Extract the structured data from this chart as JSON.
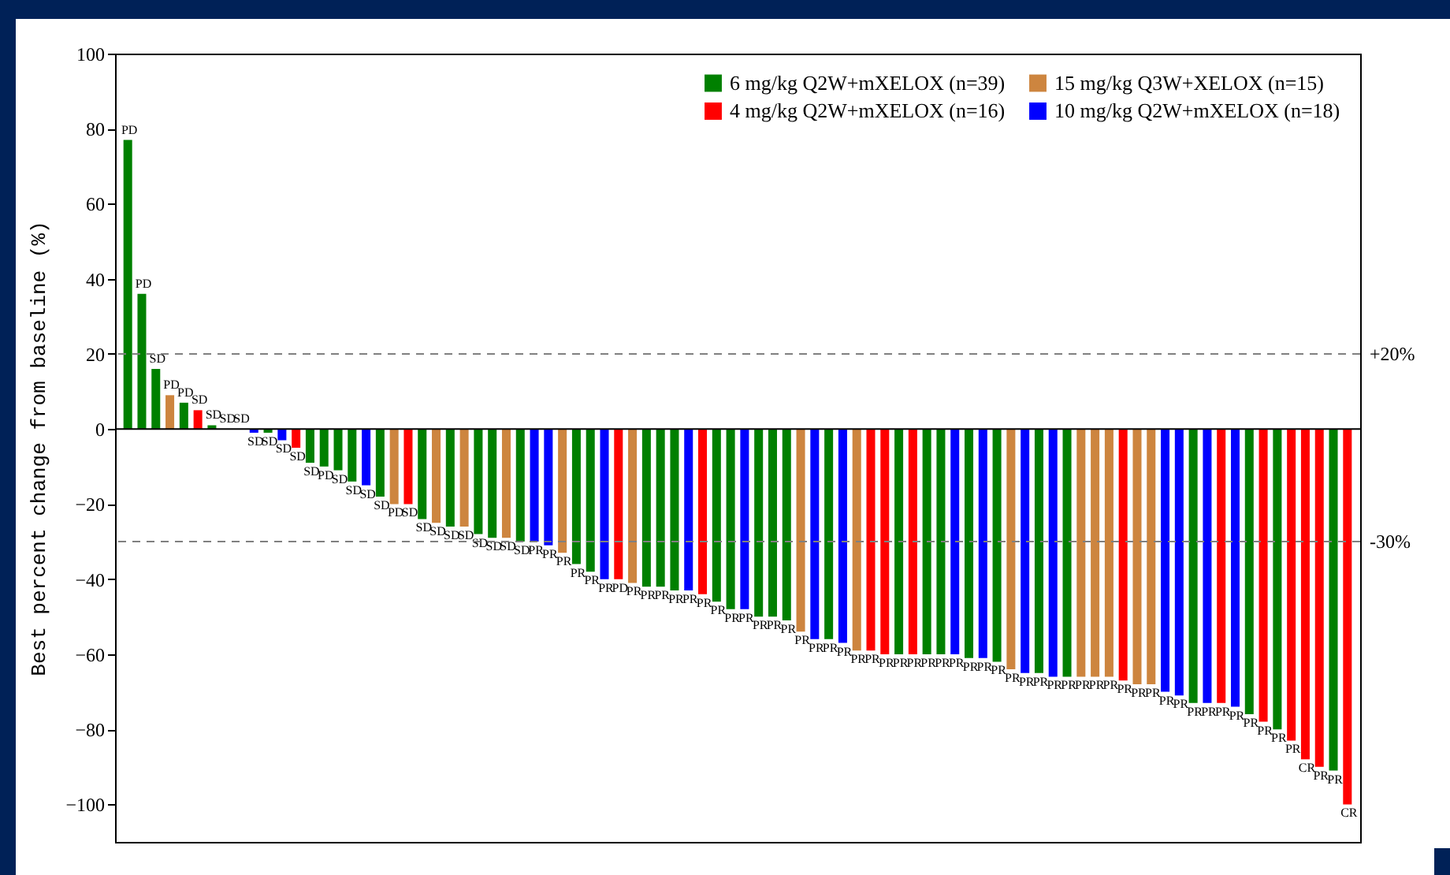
{
  "chart_data": {
    "type": "bar",
    "ylabel": "Best percent change from baseline (%)",
    "categories": [
      null,
      null,
      null,
      null,
      null,
      null,
      null,
      null,
      null,
      null,
      null,
      null,
      null,
      null,
      null,
      null,
      null,
      null,
      null,
      null,
      null,
      null,
      null,
      null,
      null,
      null,
      null,
      null,
      null,
      null,
      null,
      null,
      null,
      null,
      null,
      null,
      null,
      null,
      null,
      null,
      null,
      null,
      null,
      null,
      null,
      null,
      null,
      null,
      null,
      null,
      null,
      null,
      null,
      null,
      null,
      null,
      null,
      null,
      null,
      null,
      null,
      null,
      null,
      null,
      null,
      null,
      null,
      null,
      null,
      null,
      null,
      null,
      null,
      null,
      null,
      null,
      null,
      null,
      null,
      null,
      null,
      null,
      null,
      null,
      null,
      null,
      null,
      null
    ],
    "series": [
      {
        "name": "6 mg/kg Q2W+mXELOX (n=39)",
        "color": "#008000",
        "values": [
          77,
          36,
          16,
          null,
          7,
          null,
          1,
          0,
          null,
          null,
          -1,
          null,
          null,
          -9,
          -10,
          -11,
          -14,
          null,
          -18,
          null,
          null,
          -24,
          null,
          -26,
          null,
          -28,
          -29,
          null,
          -30,
          null,
          null,
          null,
          -36,
          -38,
          null,
          null,
          null,
          -42,
          -42,
          -43,
          null,
          null,
          -46,
          -48,
          null,
          -50,
          -50,
          -51,
          null,
          null,
          -56,
          null,
          null,
          null,
          null,
          -60,
          null,
          -60,
          -60,
          null,
          -61,
          null,
          -62,
          null,
          null,
          -65,
          null,
          -66,
          null,
          null,
          null,
          null,
          null,
          null,
          null,
          null,
          -73,
          null,
          null,
          null,
          -76,
          null,
          -80,
          null,
          null,
          null,
          -91,
          null
        ],
        "value_labels": [
          "PD",
          "PD",
          "SD",
          null,
          "PD",
          null,
          "SD",
          "SD",
          null,
          null,
          "SD",
          null,
          null,
          "SD",
          "PD",
          "SD",
          "SD",
          null,
          "SD",
          null,
          null,
          "SD",
          null,
          "SD",
          null,
          "SD",
          "SD",
          null,
          "SD",
          null,
          null,
          null,
          "PR",
          "PR",
          null,
          null,
          null,
          "PR",
          "PR",
          "PR",
          null,
          null,
          "PR",
          "PR",
          null,
          "PR",
          "PR",
          "PR",
          null,
          null,
          "PR",
          null,
          null,
          null,
          null,
          "PR",
          null,
          "PR",
          "PR",
          null,
          "PR",
          null,
          "PR",
          null,
          null,
          "PR",
          null,
          "PR",
          null,
          null,
          null,
          null,
          null,
          null,
          null,
          null,
          "PR",
          null,
          null,
          null,
          "PR",
          null,
          "PR",
          null,
          null,
          null,
          "PR",
          null
        ]
      },
      {
        "name": "15 mg/kg Q3W+XELOX (n=15)",
        "color": "#cd853f",
        "values": [
          null,
          null,
          null,
          9,
          null,
          null,
          null,
          null,
          null,
          null,
          null,
          null,
          null,
          null,
          null,
          null,
          null,
          null,
          null,
          -20,
          null,
          null,
          -25,
          null,
          -26,
          null,
          null,
          -29,
          null,
          null,
          null,
          -33,
          null,
          null,
          null,
          null,
          -41,
          null,
          null,
          null,
          null,
          null,
          null,
          null,
          null,
          null,
          null,
          null,
          -54,
          null,
          null,
          null,
          -59,
          null,
          null,
          null,
          null,
          null,
          null,
          null,
          null,
          null,
          null,
          -64,
          null,
          null,
          null,
          null,
          -66,
          -66,
          -66,
          null,
          -68,
          -68,
          null,
          null,
          null,
          null,
          null,
          null,
          null,
          null,
          null,
          null,
          null,
          null,
          null,
          null
        ],
        "value_labels": [
          null,
          null,
          null,
          "PD",
          null,
          null,
          null,
          null,
          null,
          null,
          null,
          null,
          null,
          null,
          null,
          null,
          null,
          null,
          null,
          "PD",
          null,
          null,
          "SD",
          null,
          "SD",
          null,
          null,
          "SD",
          null,
          null,
          null,
          "PR",
          null,
          null,
          null,
          null,
          "PR",
          null,
          null,
          null,
          null,
          null,
          null,
          null,
          null,
          null,
          null,
          null,
          "PR",
          null,
          null,
          null,
          "PR",
          null,
          null,
          null,
          null,
          null,
          null,
          null,
          null,
          null,
          null,
          "PR",
          null,
          null,
          null,
          null,
          "PR",
          "PR",
          "PR",
          null,
          "PR",
          "PR",
          null,
          null,
          null,
          null,
          null,
          null,
          null,
          null,
          null,
          null,
          null,
          null,
          null,
          null
        ]
      },
      {
        "name": "4 mg/kg Q2W+mXELOX (n=16)",
        "color": "#ff0000",
        "values": [
          null,
          null,
          null,
          null,
          null,
          5,
          null,
          null,
          0,
          null,
          null,
          null,
          -5,
          null,
          null,
          null,
          null,
          null,
          null,
          null,
          -20,
          null,
          null,
          null,
          null,
          null,
          null,
          null,
          null,
          null,
          null,
          null,
          null,
          null,
          null,
          -40,
          null,
          null,
          null,
          null,
          null,
          -44,
          null,
          null,
          null,
          null,
          null,
          null,
          null,
          null,
          null,
          null,
          null,
          -59,
          -60,
          null,
          -60,
          null,
          null,
          null,
          null,
          null,
          null,
          null,
          null,
          null,
          null,
          null,
          null,
          null,
          null,
          -67,
          null,
          null,
          null,
          null,
          null,
          null,
          -73,
          null,
          null,
          -78,
          null,
          -83,
          -88,
          -90,
          null,
          -100
        ],
        "value_labels": [
          null,
          null,
          null,
          null,
          null,
          "SD",
          null,
          null,
          "SD",
          null,
          null,
          null,
          "SD",
          null,
          null,
          null,
          null,
          null,
          null,
          null,
          "SD",
          null,
          null,
          null,
          null,
          null,
          null,
          null,
          null,
          null,
          null,
          null,
          null,
          null,
          null,
          "PD",
          null,
          null,
          null,
          null,
          null,
          "PR",
          null,
          null,
          null,
          null,
          null,
          null,
          null,
          null,
          null,
          null,
          null,
          "PR",
          "PR",
          null,
          "PR",
          null,
          null,
          null,
          null,
          null,
          null,
          null,
          null,
          null,
          null,
          null,
          null,
          null,
          null,
          "PR",
          null,
          null,
          null,
          null,
          null,
          null,
          "PR",
          null,
          null,
          "PR",
          null,
          "PR",
          "CR",
          "PR",
          null,
          "CR"
        ]
      },
      {
        "name": "10 mg/kg Q2W+mXELOX (n=18)",
        "color": "#0000ff",
        "values": [
          null,
          null,
          null,
          null,
          null,
          null,
          null,
          null,
          null,
          -1,
          null,
          -3,
          null,
          null,
          null,
          null,
          null,
          -15,
          null,
          null,
          null,
          null,
          null,
          null,
          null,
          null,
          null,
          null,
          null,
          -30,
          -31,
          null,
          null,
          null,
          -40,
          null,
          null,
          null,
          null,
          null,
          -43,
          null,
          null,
          null,
          -48,
          null,
          null,
          null,
          null,
          -56,
          null,
          -57,
          null,
          null,
          null,
          null,
          null,
          null,
          null,
          -60,
          null,
          -61,
          null,
          null,
          -65,
          null,
          -66,
          null,
          null,
          null,
          null,
          null,
          null,
          null,
          -70,
          -71,
          null,
          -73,
          null,
          -74,
          null,
          null,
          null,
          null,
          null,
          null,
          null,
          null
        ],
        "value_labels": [
          null,
          null,
          null,
          null,
          null,
          null,
          null,
          null,
          null,
          "SD",
          null,
          "SD",
          null,
          null,
          null,
          null,
          null,
          "SD",
          null,
          null,
          null,
          null,
          null,
          null,
          null,
          null,
          null,
          null,
          null,
          "PR",
          "PR",
          null,
          null,
          null,
          "PR",
          null,
          null,
          null,
          null,
          null,
          "PR",
          null,
          null,
          null,
          "PR",
          null,
          null,
          null,
          null,
          "PR",
          null,
          "PR",
          null,
          null,
          null,
          null,
          null,
          null,
          null,
          "PR",
          null,
          "PR",
          null,
          null,
          "PR",
          null,
          "PR",
          null,
          null,
          null,
          null,
          null,
          null,
          null,
          "PR",
          "PR",
          null,
          "PR",
          null,
          "PR",
          null,
          null,
          null,
          null,
          null,
          null,
          null,
          null
        ]
      }
    ],
    "ylim": [
      -110,
      100
    ],
    "yticks": [
      -100,
      -80,
      -60,
      -40,
      -20,
      0,
      20,
      40,
      60,
      80,
      100
    ],
    "ref_lines": [
      {
        "axis": "y",
        "value": 20,
        "label": "+20%",
        "color": "#808080",
        "line_style": "dashed"
      },
      {
        "axis": "y",
        "value": -30,
        "label": "-30%",
        "color": "#808080",
        "line_style": "dashed"
      },
      {
        "axis": "y",
        "value": 0,
        "label": null,
        "color": "#000000",
        "line_style": "solid"
      }
    ],
    "legend": "top right",
    "tick_labels": "y",
    "grid": false
  }
}
